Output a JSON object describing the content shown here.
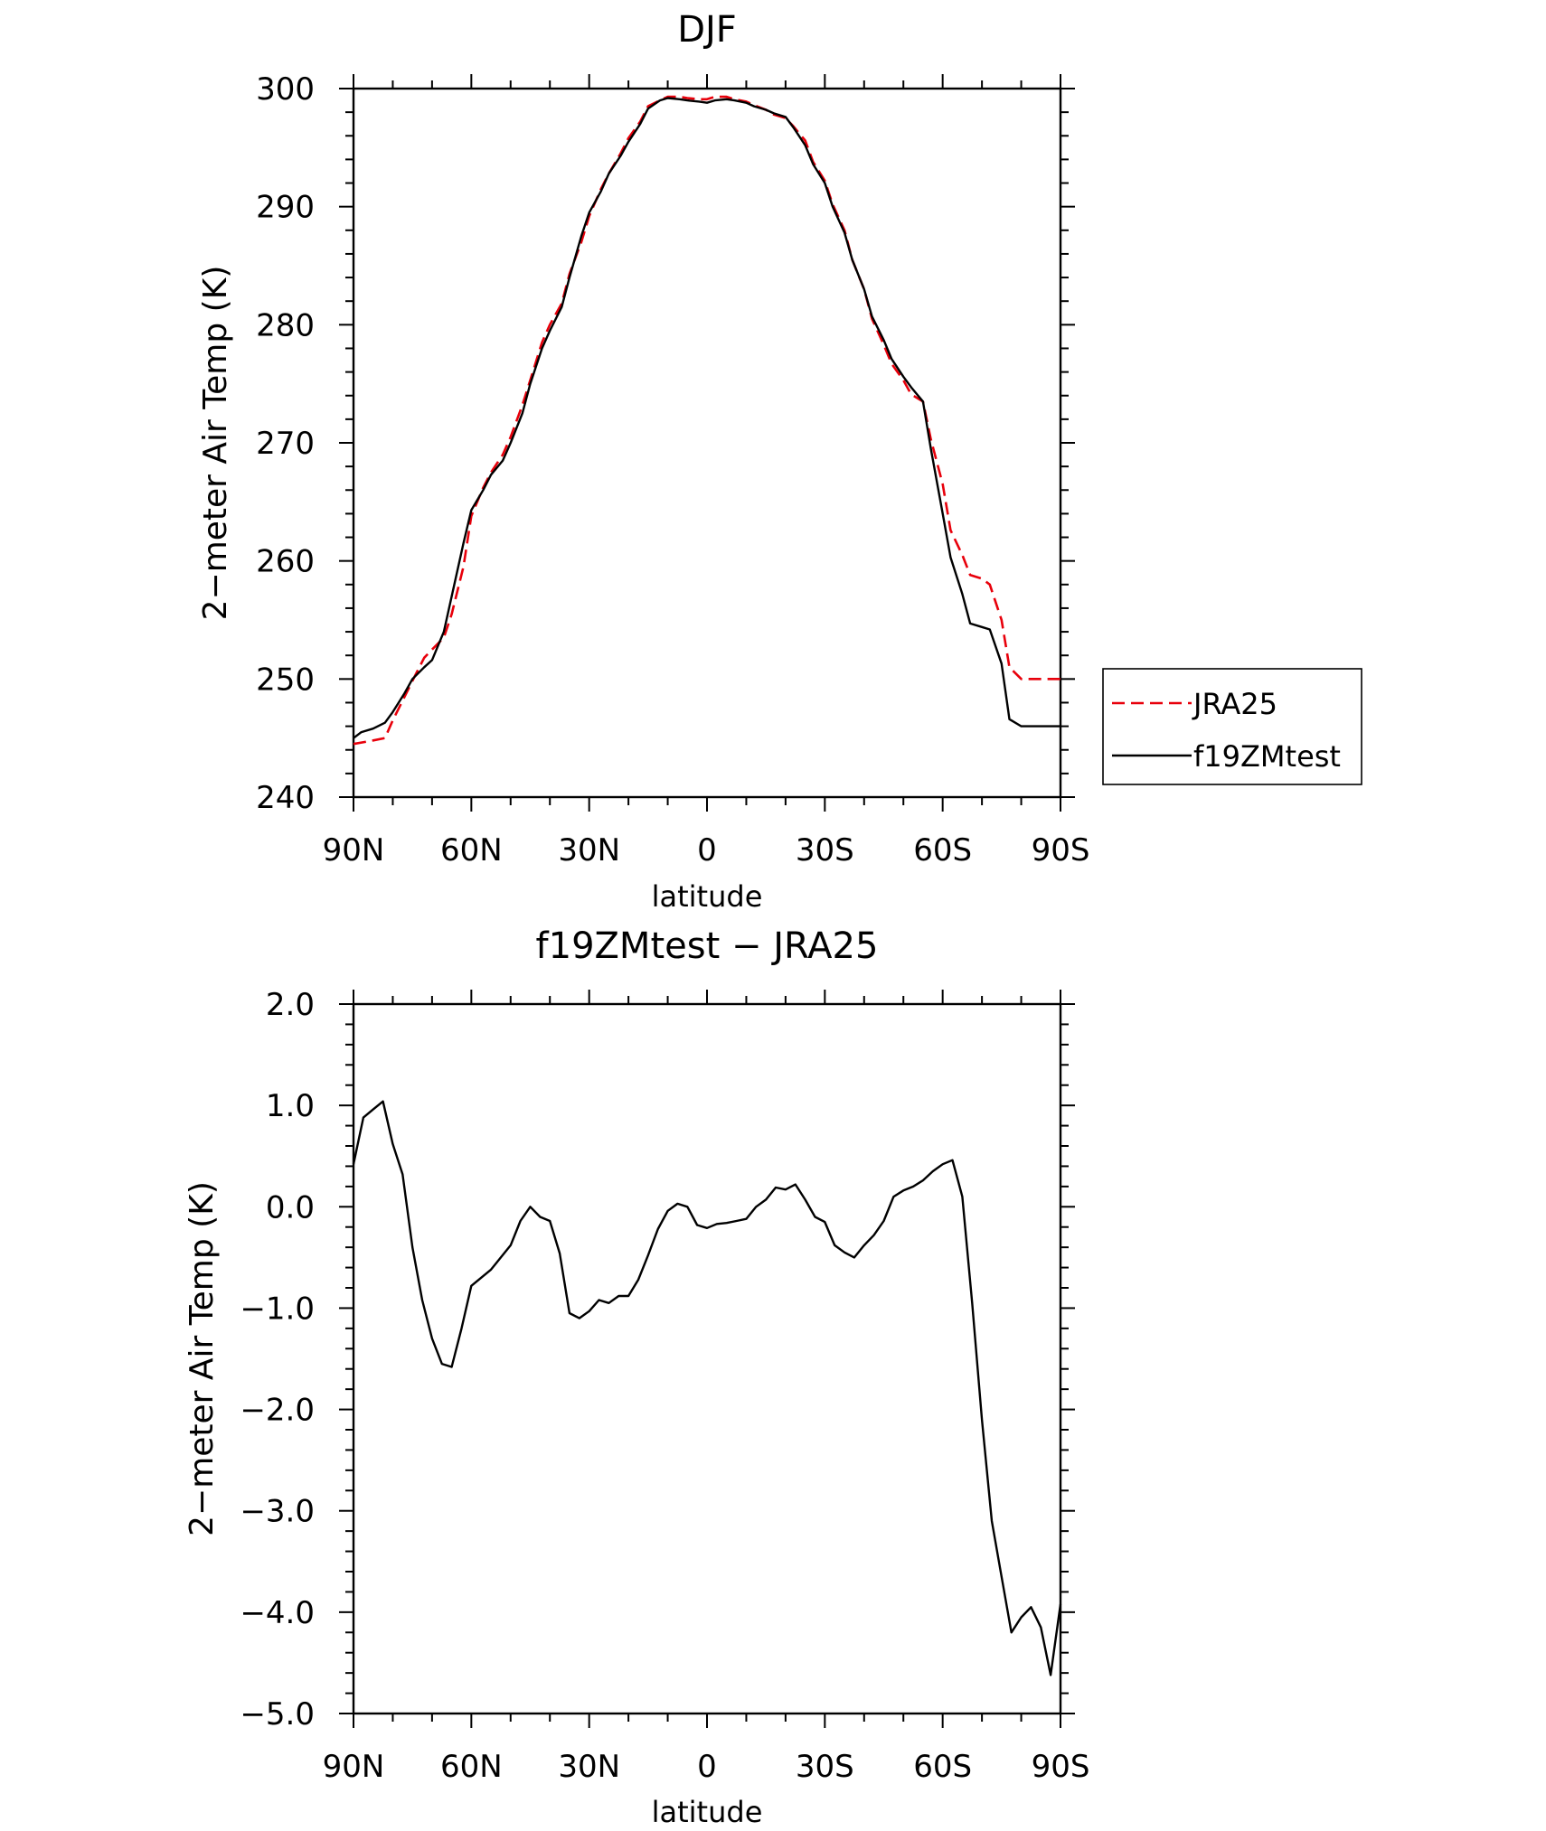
{
  "chart_data": [
    {
      "type": "line",
      "title": "DJF",
      "xlabel": "latitude",
      "ylabel": "2−meter Air Temp (K)",
      "x_ticks": [
        {
          "value": -90,
          "label": "90N"
        },
        {
          "value": -60,
          "label": "60N"
        },
        {
          "value": -30,
          "label": "30N"
        },
        {
          "value": 0,
          "label": "0"
        },
        {
          "value": 30,
          "label": "30S"
        },
        {
          "value": 60,
          "label": "60S"
        },
        {
          "value": 90,
          "label": "90S"
        }
      ],
      "y_ticks": [
        {
          "value": 240,
          "label": "240"
        },
        {
          "value": 250,
          "label": "250"
        },
        {
          "value": 260,
          "label": "260"
        },
        {
          "value": 270,
          "label": "270"
        },
        {
          "value": 280,
          "label": "280"
        },
        {
          "value": 290,
          "label": "290"
        },
        {
          "value": 300,
          "label": "300"
        }
      ],
      "xlim": [
        -90,
        90
      ],
      "ylim": [
        240,
        300
      ],
      "grid": false,
      "legend": "outside-right",
      "series": [
        {
          "name": "JRA25",
          "color": "#e8000b",
          "dash": true,
          "x": [
            -90,
            -85,
            -82,
            -80,
            -77,
            -74,
            -72,
            -70,
            -67,
            -65,
            -62,
            -60,
            -57,
            -55,
            -52,
            -50,
            -47,
            -45,
            -42,
            -40,
            -37,
            -35,
            -32,
            -30,
            -27,
            -25,
            -22,
            -20,
            -17,
            -15,
            -12,
            -10,
            -7,
            -5,
            -2,
            0,
            2,
            5,
            7,
            10,
            12,
            15,
            17,
            20,
            22,
            25,
            27,
            30,
            32,
            35,
            37,
            40,
            42,
            45,
            47,
            50,
            52,
            55,
            57,
            60,
            62,
            65,
            67,
            70,
            72,
            75,
            77,
            80,
            82,
            85,
            87,
            90
          ],
          "y": [
            244.5,
            244.8,
            245.0,
            246.5,
            248.5,
            250.5,
            251.8,
            252.5,
            253.5,
            255.5,
            259.5,
            263.8,
            266.2,
            267.5,
            269.0,
            270.5,
            273.2,
            275.3,
            278.5,
            280.0,
            281.8,
            284.3,
            287.0,
            289.2,
            291.5,
            292.8,
            294.5,
            295.8,
            297.2,
            298.5,
            299.0,
            299.3,
            299.3,
            299.2,
            299.1,
            299.1,
            299.3,
            299.3,
            299.1,
            298.9,
            298.6,
            298.2,
            297.8,
            297.5,
            296.8,
            295.6,
            293.8,
            292.2,
            290.2,
            288.0,
            285.5,
            283.0,
            280.5,
            278.3,
            276.7,
            275.3,
            274.1,
            273.5,
            270.3,
            266.5,
            262.6,
            260.5,
            258.8,
            258.5,
            258.0,
            255.0,
            251.0,
            250.0,
            250.0,
            250.0,
            250.0,
            250.0
          ]
        },
        {
          "name": "f19ZMtest",
          "color": "#000000",
          "dash": false,
          "x": [
            -90,
            -88,
            -85,
            -82,
            -80,
            -77,
            -75,
            -72,
            -70,
            -67,
            -65,
            -62,
            -60,
            -57,
            -55,
            -52,
            -50,
            -47,
            -45,
            -42,
            -40,
            -37,
            -35,
            -32,
            -30,
            -27,
            -25,
            -22,
            -20,
            -17,
            -15,
            -12,
            -10,
            -7,
            -5,
            -2,
            0,
            2,
            5,
            7,
            10,
            12,
            15,
            17,
            20,
            22,
            25,
            27,
            30,
            32,
            35,
            37,
            40,
            42,
            45,
            47,
            50,
            52,
            55,
            57,
            60,
            62,
            65,
            67,
            70,
            72,
            75,
            77,
            80,
            82,
            85,
            87,
            90
          ],
          "y": [
            245.0,
            245.5,
            245.8,
            246.3,
            247.2,
            248.8,
            250.0,
            251.0,
            251.6,
            254.0,
            257.0,
            261.5,
            264.3,
            266.0,
            267.3,
            268.5,
            270.0,
            272.5,
            275.0,
            278.0,
            279.5,
            281.5,
            284.0,
            287.5,
            289.5,
            291.3,
            292.8,
            294.3,
            295.5,
            297.0,
            298.3,
            299.0,
            299.2,
            299.1,
            299.0,
            298.9,
            298.8,
            299.0,
            299.1,
            299.0,
            298.8,
            298.5,
            298.2,
            297.9,
            297.6,
            296.7,
            295.2,
            293.6,
            292.0,
            290.0,
            287.8,
            285.5,
            283.0,
            280.7,
            278.7,
            277.1,
            275.6,
            274.7,
            273.5,
            269.5,
            264.0,
            260.3,
            257.2,
            254.7,
            254.4,
            254.2,
            251.3,
            246.6,
            246.0,
            246.0,
            246.0,
            246.0,
            246.0
          ]
        }
      ]
    },
    {
      "type": "line",
      "title": "f19ZMtest − JRA25",
      "xlabel": "latitude",
      "ylabel": "2−meter Air Temp (K)",
      "x_ticks": [
        {
          "value": -90,
          "label": "90N"
        },
        {
          "value": -60,
          "label": "60N"
        },
        {
          "value": -30,
          "label": "30N"
        },
        {
          "value": 0,
          "label": "0"
        },
        {
          "value": 30,
          "label": "30S"
        },
        {
          "value": 60,
          "label": "60S"
        },
        {
          "value": 90,
          "label": "90S"
        }
      ],
      "y_ticks": [
        {
          "value": -5,
          "label": "−5.0"
        },
        {
          "value": -4,
          "label": "−4.0"
        },
        {
          "value": -3,
          "label": "−3.0"
        },
        {
          "value": -2,
          "label": "−2.0"
        },
        {
          "value": -1,
          "label": "−1.0"
        },
        {
          "value": 0,
          "label": "0.0"
        },
        {
          "value": 1,
          "label": "1.0"
        },
        {
          "value": 2,
          "label": "2.0"
        }
      ],
      "xlim": [
        -90,
        90
      ],
      "ylim": [
        -5,
        2
      ],
      "grid": false,
      "series": [
        {
          "color": "#000000",
          "dash": false,
          "x": [
            -90,
            -87.5,
            -85,
            -82.5,
            -80,
            -77.5,
            -75,
            -72.5,
            -70,
            -67.5,
            -65,
            -62.5,
            -60,
            -57.5,
            -55,
            -52.5,
            -50,
            -47.5,
            -45,
            -42.5,
            -40,
            -37.5,
            -35,
            -32.5,
            -30,
            -27.5,
            -25,
            -22.5,
            -20,
            -17.5,
            -15,
            -12.5,
            -10,
            -7.5,
            -5,
            -2.5,
            0,
            2.5,
            5,
            7.5,
            10,
            12.5,
            15,
            17.5,
            20,
            22.5,
            25,
            27.5,
            30,
            32.5,
            35,
            37.5,
            40,
            42.5,
            45,
            47.5,
            50,
            52.5,
            55,
            57.5,
            60,
            62.5,
            65,
            67.5,
            70,
            72.5,
            75,
            77.5,
            80,
            82.5,
            85,
            87.5,
            90
          ],
          "y": [
            0.42,
            0.88,
            0.96,
            1.04,
            0.62,
            0.32,
            -0.4,
            -0.92,
            -1.3,
            -1.55,
            -1.58,
            -1.2,
            -0.78,
            -0.7,
            -0.62,
            -0.5,
            -0.38,
            -0.14,
            0.0,
            -0.1,
            -0.14,
            -0.46,
            -1.05,
            -1.1,
            -1.03,
            -0.92,
            -0.95,
            -0.88,
            -0.88,
            -0.72,
            -0.48,
            -0.22,
            -0.04,
            0.03,
            0.0,
            -0.18,
            -0.21,
            -0.17,
            -0.16,
            -0.14,
            -0.12,
            0.0,
            0.07,
            0.19,
            0.17,
            0.22,
            0.07,
            -0.1,
            -0.15,
            -0.38,
            -0.45,
            -0.5,
            -0.38,
            -0.28,
            -0.14,
            0.1,
            0.16,
            0.2,
            0.26,
            0.35,
            0.42,
            0.46,
            0.1,
            -0.95,
            -2.1,
            -3.1,
            -3.65,
            -4.2,
            -4.05,
            -3.95,
            -4.15,
            -4.62,
            -3.92
          ]
        }
      ]
    }
  ]
}
